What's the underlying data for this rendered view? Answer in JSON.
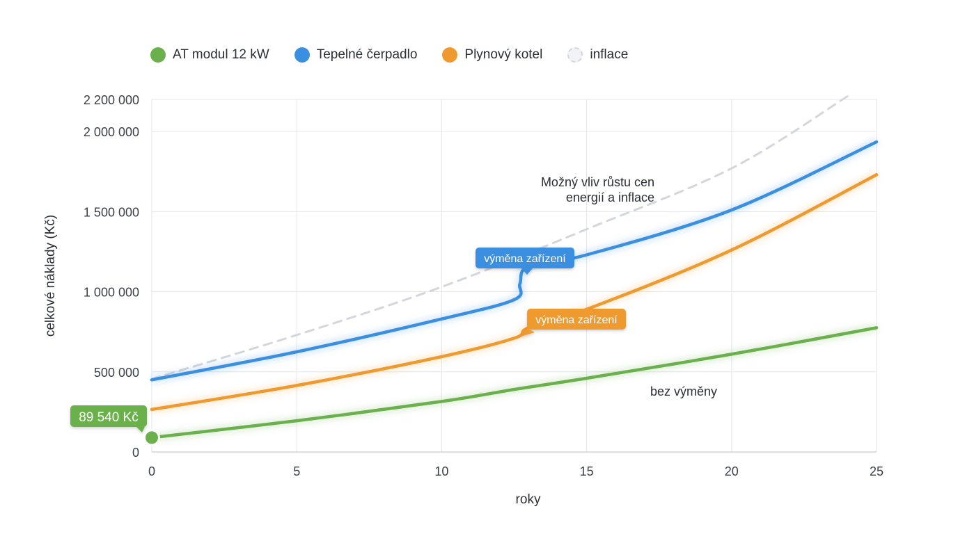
{
  "legend": [
    {
      "name": "AT modul 12 kW",
      "color": "#6ab04c"
    },
    {
      "name": "Tepelné čerpadlo",
      "color": "#3a8fe0"
    },
    {
      "name": "Plynový kotel",
      "color": "#ee9a2e"
    },
    {
      "name": "inflace",
      "color": "#d3d6dc",
      "style": "dashed"
    }
  ],
  "chart_data": {
    "type": "line",
    "xlabel": "roky",
    "ylabel": "celkové náklady (Kč)",
    "xlim": [
      0,
      25
    ],
    "ylim": [
      0,
      2200000
    ],
    "x_ticks": [
      0,
      5,
      10,
      15,
      20,
      25
    ],
    "x_tick_labels": [
      "0",
      "5",
      "10",
      "15",
      "20",
      "25"
    ],
    "y_ticks": [
      0,
      500000,
      1000000,
      1500000,
      2000000,
      2200000
    ],
    "y_tick_labels": [
      "0",
      "500 000",
      "1 000 000",
      "1 500 000",
      "2 000 000",
      "2 200 000"
    ],
    "grid": true,
    "legend_position": "top-left",
    "series": [
      {
        "name": "AT modul 12 kW",
        "color": "#6ab04c",
        "points": [
          [
            0,
            89540
          ],
          [
            5,
            195000
          ],
          [
            10,
            315000
          ],
          [
            12.5,
            390000
          ],
          [
            15,
            460000
          ],
          [
            20,
            610000
          ],
          [
            25,
            775000
          ]
        ]
      },
      {
        "name": "Tepelné čerpadlo",
        "color": "#3a8fe0",
        "points": [
          [
            0,
            450000
          ],
          [
            5,
            625000
          ],
          [
            10,
            830000
          ],
          [
            12.5,
            950000
          ],
          [
            12.7,
            1050000
          ],
          [
            13,
            1160000
          ],
          [
            15,
            1230000
          ],
          [
            20,
            1510000
          ],
          [
            25,
            1935000
          ]
        ]
      },
      {
        "name": "Plynový kotel",
        "color": "#ee9a2e",
        "points": [
          [
            0,
            265000
          ],
          [
            5,
            415000
          ],
          [
            10,
            595000
          ],
          [
            12.5,
            710000
          ],
          [
            13,
            775000
          ],
          [
            15,
            890000
          ],
          [
            20,
            1260000
          ],
          [
            25,
            1730000
          ]
        ]
      },
      {
        "name": "inflace",
        "color": "#d3d6dc",
        "dashed": true,
        "points": [
          [
            0,
            455000
          ],
          [
            5,
            730000
          ],
          [
            10,
            1030000
          ],
          [
            15,
            1390000
          ],
          [
            20,
            1770000
          ],
          [
            24,
            2220000
          ]
        ]
      }
    ],
    "annotations": {
      "inflation_note": [
        "Možný vliv růstu cen",
        "energií a inflace"
      ],
      "hp_replacement": {
        "text": "výměna zařízení",
        "x": 12.8,
        "y": 1160000
      },
      "gas_replacement": {
        "text": "výměna zařízení",
        "x": 13.2,
        "y": 775000
      },
      "no_replacement": "bez výměny",
      "start_value": {
        "text": "89 540 Kč",
        "x": 0,
        "y": 89540
      }
    }
  }
}
